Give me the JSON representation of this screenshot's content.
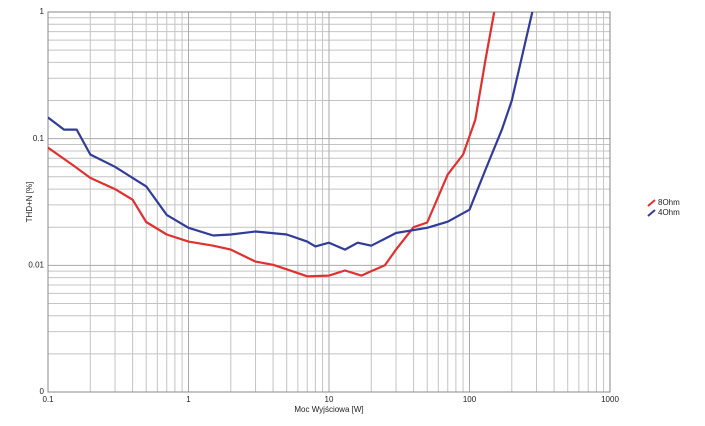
{
  "chart_data": {
    "type": "line",
    "xlabel": "Moc Wyjściowa [W]",
    "ylabel": "THD+N [%]",
    "xscale": "log",
    "yscale": "log",
    "grid": true,
    "minor_grid": true,
    "legend": "right",
    "xlim": [
      0.1,
      1000
    ],
    "xticks": [
      0.1,
      1,
      10,
      100,
      1000
    ],
    "ylim": [
      0.001,
      1
    ],
    "yticks": [
      {
        "value": 0.001,
        "label": "0"
      },
      0.01,
      0.1,
      1
    ],
    "series": [
      {
        "name": "8Ohm",
        "color": "#e03030",
        "x": [
          0.1,
          0.15,
          0.2,
          0.3,
          0.4,
          0.5,
          0.7,
          1,
          1.5,
          2,
          3,
          4,
          5,
          7,
          10,
          13,
          17,
          20,
          25,
          30,
          40,
          50,
          70,
          90,
          110,
          130,
          150
        ],
        "values": [
          0.085,
          0.062,
          0.049,
          0.04,
          0.033,
          0.022,
          0.0175,
          0.0154,
          0.0143,
          0.0133,
          0.0107,
          0.0101,
          0.0093,
          0.0082,
          0.0083,
          0.0091,
          0.0083,
          0.009,
          0.01,
          0.0133,
          0.02,
          0.0218,
          0.052,
          0.075,
          0.141,
          0.42,
          1.0
        ]
      },
      {
        "name": "4Ohm",
        "color": "#303c98",
        "x": [
          0.1,
          0.13,
          0.16,
          0.2,
          0.3,
          0.4,
          0.5,
          0.7,
          1,
          1.5,
          2,
          3,
          5,
          7,
          8,
          10,
          13,
          16,
          20,
          30,
          50,
          70,
          100,
          130,
          170,
          200,
          280
        ],
        "values": [
          0.147,
          0.118,
          0.118,
          0.075,
          0.06,
          0.049,
          0.042,
          0.025,
          0.0198,
          0.0172,
          0.0175,
          0.0185,
          0.0175,
          0.0154,
          0.0141,
          0.0151,
          0.0133,
          0.0151,
          0.0143,
          0.018,
          0.0198,
          0.0221,
          0.0275,
          0.057,
          0.118,
          0.2,
          1.0
        ]
      }
    ]
  }
}
